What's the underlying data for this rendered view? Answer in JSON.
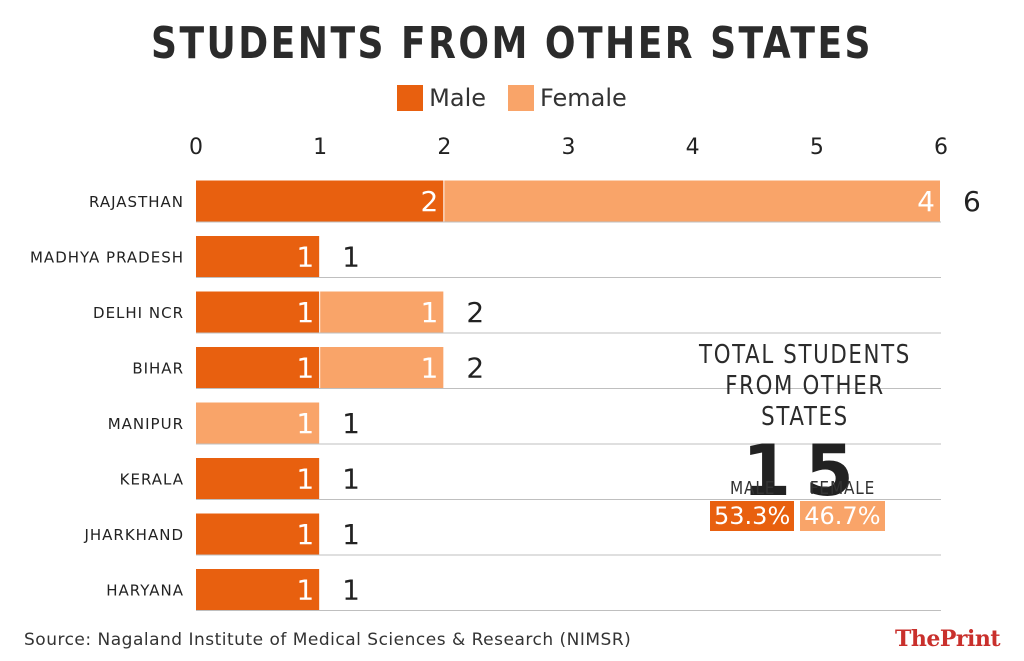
{
  "colors": {
    "male": "#e8600f",
    "female": "#f9a469",
    "grid": "#bfbfbf"
  },
  "legend": {
    "male": "Male",
    "female": "Female"
  },
  "chart_data": {
    "type": "bar",
    "orientation": "horizontal",
    "stacked": true,
    "title": "STUDENTS FROM OTHER STATES",
    "categories": [
      "RAJASTHAN",
      "MADHYA PRADESH",
      "DELHI NCR",
      "BIHAR",
      "MANIPUR",
      "KERALA",
      "JHARKHAND",
      "HARYANA"
    ],
    "series": [
      {
        "name": "Male",
        "values": [
          2,
          1,
          1,
          1,
          0,
          1,
          1,
          1
        ]
      },
      {
        "name": "Female",
        "values": [
          4,
          0,
          1,
          1,
          1,
          0,
          0,
          0
        ]
      }
    ],
    "totals": [
      6,
      1,
      2,
      2,
      1,
      1,
      1,
      1
    ],
    "xlim": [
      0,
      6
    ],
    "xticks": [
      0,
      1,
      2,
      3,
      4,
      5,
      6
    ],
    "legend_position": "top-center"
  },
  "summary": {
    "title_line1": "TOTAL STUDENTS",
    "title_line2": "FROM OTHER STATES",
    "total": "15",
    "male_label": "MALE",
    "female_label": "FEMALE",
    "male_pct": "53.3%",
    "female_pct": "46.7%"
  },
  "source": "Source: Nagaland Institute of Medical Sciences & Research (NIMSR)",
  "brand": {
    "the": "The",
    "print": "Print"
  }
}
